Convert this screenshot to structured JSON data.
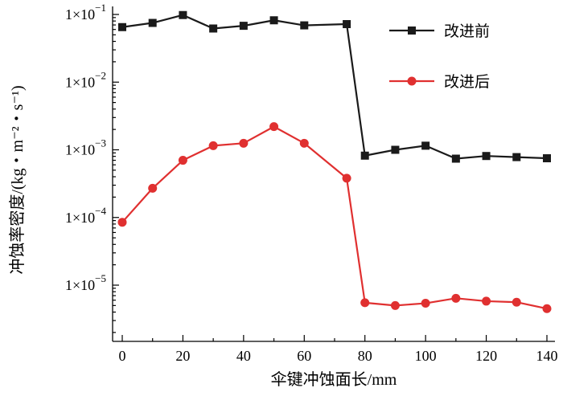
{
  "chart_data": {
    "type": "line",
    "title": "",
    "xlabel": "伞键冲蚀面长/mm",
    "ylabel": "冲蚀率密度/(kg・m⁻²・s⁻¹)",
    "yscale": "log",
    "xlim": [
      -2,
      140
    ],
    "ylim": [
      2e-06,
      0.1
    ],
    "x_ticks": [
      {
        "value": 0,
        "label": "0"
      },
      {
        "value": 20,
        "label": "20"
      },
      {
        "value": 40,
        "label": "40"
      },
      {
        "value": 60,
        "label": "60"
      },
      {
        "value": 80,
        "label": "80"
      },
      {
        "value": 100,
        "label": "100"
      },
      {
        "value": 120,
        "label": "120"
      },
      {
        "value": 140,
        "label": "140"
      }
    ],
    "y_ticks": [
      {
        "value": 0.1,
        "mant": "1×10",
        "exp": "−1"
      },
      {
        "value": 0.01,
        "mant": "1×10",
        "exp": "−2"
      },
      {
        "value": 0.001,
        "mant": "1×10",
        "exp": "−3"
      },
      {
        "value": 0.0001,
        "mant": "1×10",
        "exp": "−4"
      },
      {
        "value": 1e-05,
        "mant": "1×10",
        "exp": "−5"
      }
    ],
    "legend_position": "top-right",
    "series": [
      {
        "name": "改进前",
        "color": "#1a1a1a",
        "marker": "square",
        "x": [
          0,
          10,
          20,
          30,
          40,
          50,
          60,
          74,
          80,
          90,
          100,
          110,
          120,
          130,
          140
        ],
        "y": [
          0.065,
          0.075,
          0.098,
          0.062,
          0.068,
          0.082,
          0.069,
          0.072,
          0.00082,
          0.001,
          0.00115,
          0.00074,
          0.00081,
          0.00078,
          0.00075
        ]
      },
      {
        "name": "改进后",
        "color": "#e03030",
        "marker": "circle",
        "x": [
          0,
          10,
          20,
          30,
          40,
          50,
          60,
          74,
          80,
          90,
          100,
          110,
          120,
          130,
          140
        ],
        "y": [
          8.5e-05,
          0.00027,
          0.0007,
          0.00115,
          0.00125,
          0.0022,
          0.00125,
          0.00038,
          5.5e-06,
          5e-06,
          5.4e-06,
          6.4e-06,
          5.8e-06,
          5.6e-06,
          4.5e-06
        ]
      }
    ]
  }
}
